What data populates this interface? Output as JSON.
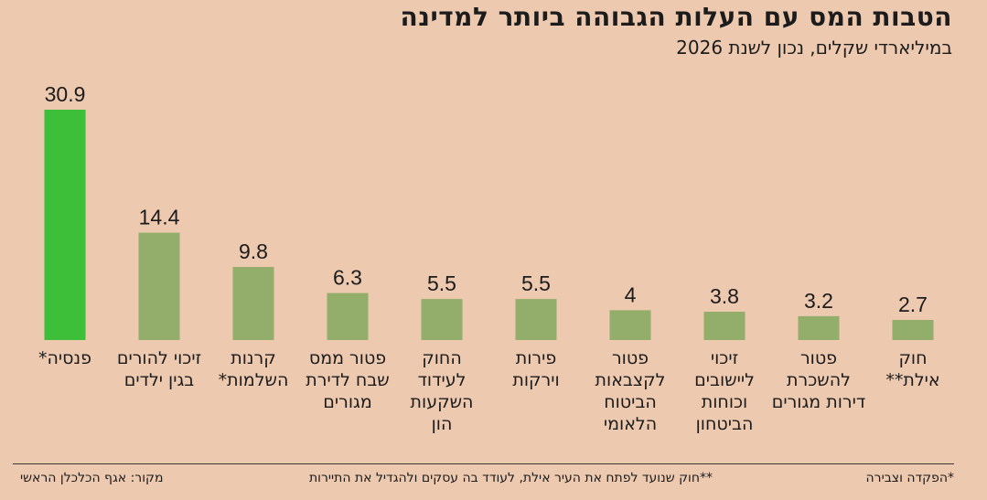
{
  "header": {
    "title": "הטבות המס עם העלות הגבוהה ביותר למדינה",
    "subtitle": "במיליארדי שקלים, נכון לשנת 2026"
  },
  "footnotes": {
    "note1": "*הפקדה וצבירה",
    "note2": "**חוק שנועד לפתח את העיר אילת, לעודד בה עסקים ולהגדיל את התיירות",
    "source": "מקור: אגף הכלכלן הראשי"
  },
  "colors": {
    "highlight": "#3dbf3a",
    "bar": "#93ad6a",
    "background": "#edc9b0"
  },
  "chart_data": {
    "type": "bar",
    "categories": [
      [
        "פנסיה*"
      ],
      [
        "זיכוי להורים",
        "בגין ילדים"
      ],
      [
        "קרנות",
        "השלמות*"
      ],
      [
        "פטור ממס",
        "שבח לדירת",
        "מגורים"
      ],
      [
        "החוק",
        "לעידוד",
        "השקעות",
        "הון"
      ],
      [
        "פירות",
        "וירקות"
      ],
      [
        "פטור",
        "לקצבאות",
        "הביטוח",
        "הלאומי"
      ],
      [
        "זיכוי",
        "ליישובים",
        "וכוחות",
        "הביטחון"
      ],
      [
        "פטור",
        "להשכרת",
        "דירות מגורים"
      ],
      [
        "חוק",
        "אילת**"
      ]
    ],
    "values": [
      30.9,
      14.4,
      9.8,
      6.3,
      5.5,
      5.5,
      4,
      3.8,
      3.2,
      2.7
    ],
    "value_labels": [
      "30.9",
      "14.4",
      "9.8",
      "6.3",
      "5.5",
      "5.5",
      "4",
      "3.8",
      "3.2",
      "2.7"
    ],
    "highlight_index": 0,
    "ylim": [
      0,
      30.9
    ],
    "grid": false,
    "xlabel": "",
    "ylabel": ""
  }
}
